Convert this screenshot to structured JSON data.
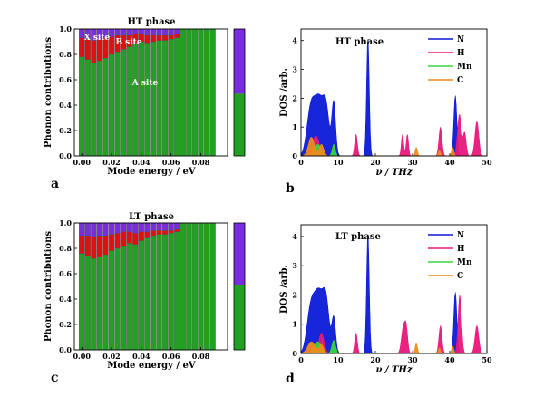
{
  "panels": [
    {
      "id": "a",
      "label": "a"
    },
    {
      "id": "b",
      "label": "b"
    },
    {
      "id": "c",
      "label": "c"
    },
    {
      "id": "d",
      "label": "d"
    }
  ],
  "chart_data": [
    {
      "panel": "a",
      "type": "bar",
      "stacked": true,
      "title": "HT phase",
      "xlabel": "Mode energy / eV",
      "ylabel": "Phonon contributions",
      "xlim": [
        -0.005,
        0.098
      ],
      "ylim": [
        0,
        1.0
      ],
      "xticks": [
        "0.00",
        "0.02",
        "0.04",
        "0.06",
        "0.08"
      ],
      "yticks": [
        "0.0",
        "0.2",
        "0.4",
        "0.6",
        "0.8",
        "1.0"
      ],
      "annotations": [
        "X site",
        "B site",
        "A site"
      ],
      "x": [
        0.0,
        0.004,
        0.008,
        0.012,
        0.016,
        0.02,
        0.024,
        0.028,
        0.032,
        0.036,
        0.04,
        0.044,
        0.048,
        0.052,
        0.056,
        0.06,
        0.064,
        0.068,
        0.072,
        0.076,
        0.08,
        0.084,
        0.088
      ],
      "series": [
        {
          "name": "A site",
          "color": "#22a022",
          "values": [
            0.78,
            0.76,
            0.73,
            0.75,
            0.77,
            0.8,
            0.82,
            0.84,
            0.86,
            0.88,
            0.9,
            0.89,
            0.9,
            0.91,
            0.91,
            0.92,
            0.93,
            1.0,
            1.0,
            1.0,
            1.0,
            1.0,
            1.0
          ]
        },
        {
          "name": "B site",
          "color": "#dd1111",
          "values": [
            0.15,
            0.16,
            0.18,
            0.17,
            0.16,
            0.14,
            0.13,
            0.11,
            0.09,
            0.08,
            0.06,
            0.06,
            0.05,
            0.04,
            0.04,
            0.03,
            0.03,
            0.0,
            0.0,
            0.0,
            0.0,
            0.0,
            0.0
          ]
        },
        {
          "name": "X site",
          "color": "#7a2ce0",
          "values": [
            0.07,
            0.08,
            0.09,
            0.08,
            0.07,
            0.06,
            0.05,
            0.05,
            0.05,
            0.04,
            0.04,
            0.05,
            0.05,
            0.05,
            0.05,
            0.05,
            0.04,
            0.0,
            0.0,
            0.0,
            0.0,
            0.0,
            0.0
          ]
        }
      ],
      "total_bar": {
        "values": [
          0.49,
          0.0,
          0.51
        ]
      }
    },
    {
      "panel": "b",
      "type": "area",
      "title": "HT phase",
      "xlabel": "ν / THz",
      "ylabel": "DOS /arb.",
      "xlim": [
        0,
        50
      ],
      "ylim": [
        0,
        4.4
      ],
      "xticks": [
        "0",
        "10",
        "20",
        "30",
        "40",
        "50"
      ],
      "yticks": [
        "0",
        "1",
        "2",
        "3",
        "4"
      ],
      "series": [
        {
          "name": "N",
          "color": "#0a1ad6",
          "peaks": [
            [
              2.5,
              1.3,
              1.0
            ],
            [
              4.8,
              2.0,
              1.4
            ],
            [
              6.8,
              1.2,
              0.8
            ],
            [
              8.8,
              1.85,
              0.5
            ],
            [
              18.0,
              4.15,
              0.35
            ],
            [
              41.5,
              2.1,
              0.4
            ]
          ]
        },
        {
          "name": "H",
          "color": "#e8177a",
          "peaks": [
            [
              4.0,
              0.7,
              0.9
            ],
            [
              14.8,
              0.75,
              0.35
            ],
            [
              27.3,
              0.75,
              0.3
            ],
            [
              28.6,
              0.75,
              0.3
            ],
            [
              37.5,
              1.0,
              0.4
            ],
            [
              42.6,
              1.45,
              0.5
            ],
            [
              44.0,
              0.8,
              0.4
            ],
            [
              47.3,
              1.2,
              0.5
            ]
          ]
        },
        {
          "name": "Mn",
          "color": "#35d63b",
          "peaks": [
            [
              4.5,
              0.4,
              1.0
            ],
            [
              8.8,
              0.4,
              0.4
            ]
          ]
        },
        {
          "name": "C",
          "color": "#f08a1a",
          "peaks": [
            [
              2.8,
              0.65,
              0.8
            ],
            [
              5.5,
              0.4,
              0.6
            ],
            [
              31.0,
              0.3,
              0.3
            ],
            [
              37.2,
              0.2,
              0.3
            ],
            [
              40.8,
              0.3,
              0.3
            ]
          ]
        }
      ]
    },
    {
      "panel": "c",
      "type": "bar",
      "stacked": true,
      "title": "LT phase",
      "xlabel": "Mode energy / eV",
      "ylabel": "Phonon contributions",
      "xlim": [
        -0.005,
        0.098
      ],
      "ylim": [
        0,
        1.0
      ],
      "xticks": [
        "0.00",
        "0.02",
        "0.04",
        "0.06",
        "0.08"
      ],
      "yticks": [
        "0.0",
        "0.2",
        "0.4",
        "0.6",
        "0.8",
        "1.0"
      ],
      "x": [
        0.0,
        0.004,
        0.008,
        0.012,
        0.016,
        0.02,
        0.024,
        0.028,
        0.032,
        0.036,
        0.04,
        0.044,
        0.048,
        0.052,
        0.056,
        0.06,
        0.064,
        0.068,
        0.072,
        0.076,
        0.08,
        0.084,
        0.088
      ],
      "series": [
        {
          "name": "A site",
          "color": "#22a022",
          "values": [
            0.76,
            0.74,
            0.72,
            0.73,
            0.75,
            0.78,
            0.8,
            0.82,
            0.84,
            0.83,
            0.86,
            0.88,
            0.9,
            0.91,
            0.91,
            0.92,
            0.93,
            1.0,
            1.0,
            1.0,
            1.0,
            1.0,
            1.0
          ]
        },
        {
          "name": "B site",
          "color": "#dd1111",
          "values": [
            0.14,
            0.16,
            0.17,
            0.17,
            0.15,
            0.13,
            0.12,
            0.11,
            0.09,
            0.09,
            0.07,
            0.05,
            0.04,
            0.03,
            0.03,
            0.02,
            0.02,
            0.0,
            0.0,
            0.0,
            0.0,
            0.0,
            0.0
          ]
        },
        {
          "name": "X site",
          "color": "#7a2ce0",
          "values": [
            0.1,
            0.1,
            0.11,
            0.1,
            0.1,
            0.09,
            0.08,
            0.07,
            0.07,
            0.08,
            0.07,
            0.07,
            0.06,
            0.06,
            0.06,
            0.06,
            0.05,
            0.0,
            0.0,
            0.0,
            0.0,
            0.0,
            0.0
          ]
        }
      ],
      "total_bar": {
        "values": [
          0.51,
          0.0,
          0.49
        ]
      }
    },
    {
      "panel": "d",
      "type": "area",
      "title": "LT phase",
      "xlabel": "ν / THz",
      "ylabel": "DOS /arb.",
      "xlim": [
        0,
        50
      ],
      "ylim": [
        0,
        4.4
      ],
      "xticks": [
        "0",
        "10",
        "20",
        "30",
        "40",
        "50"
      ],
      "yticks": [
        "0",
        "1",
        "2",
        "3",
        "4"
      ],
      "series": [
        {
          "name": "N",
          "color": "#0a1ad6",
          "peaks": [
            [
              2.5,
              1.2,
              1.0
            ],
            [
              4.8,
              2.1,
              1.4
            ],
            [
              6.8,
              1.3,
              0.8
            ],
            [
              8.8,
              1.2,
              0.5
            ],
            [
              18.0,
              4.15,
              0.35
            ],
            [
              41.5,
              2.1,
              0.4
            ]
          ]
        },
        {
          "name": "H",
          "color": "#e8177a",
          "peaks": [
            [
              5.5,
              0.7,
              0.7
            ],
            [
              14.8,
              0.7,
              0.35
            ],
            [
              27.5,
              0.85,
              0.5
            ],
            [
              28.3,
              0.8,
              0.4
            ],
            [
              37.5,
              0.95,
              0.4
            ],
            [
              42.7,
              2.0,
              0.45
            ],
            [
              47.3,
              0.95,
              0.5
            ]
          ]
        },
        {
          "name": "Mn",
          "color": "#35d63b",
          "peaks": [
            [
              4.5,
              0.4,
              1.0
            ],
            [
              8.8,
              0.45,
              0.5
            ]
          ]
        },
        {
          "name": "C",
          "color": "#f08a1a",
          "peaks": [
            [
              2.8,
              0.4,
              1.0
            ],
            [
              5.5,
              0.3,
              0.6
            ],
            [
              31.0,
              0.35,
              0.3
            ],
            [
              37.2,
              0.2,
              0.3
            ],
            [
              40.8,
              0.25,
              0.3
            ]
          ]
        }
      ]
    }
  ]
}
